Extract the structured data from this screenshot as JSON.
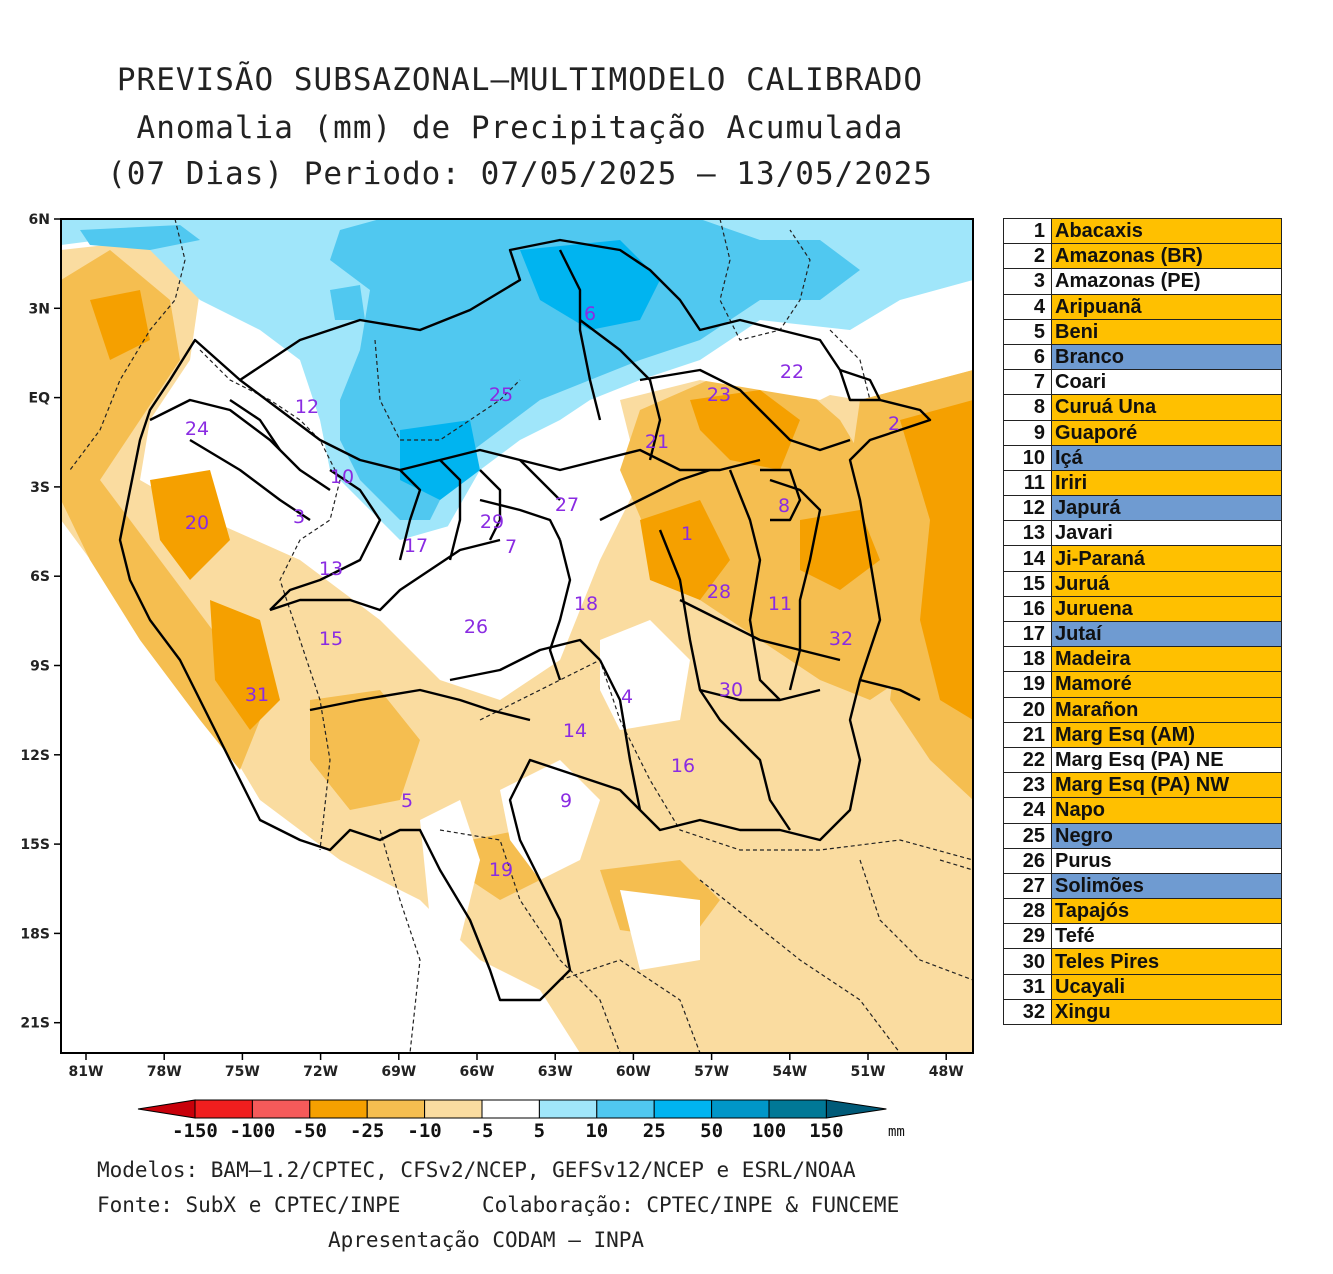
{
  "title": {
    "line1": "PREVISÃO SUBSAZONAL–MULTIMODELO CALIBRADO",
    "line2": "Anomalia (mm) de Precipitação Acumulada",
    "line3": "(07 Dias) Periodo: 07/05/2025 – 13/05/2025"
  },
  "map": {
    "lat_labels": [
      "6N",
      "3N",
      "EQ",
      "3S",
      "6S",
      "9S",
      "12S",
      "15S",
      "18S",
      "21S"
    ],
    "lon_labels": [
      "81W",
      "78W",
      "75W",
      "72W",
      "69W",
      "66W",
      "63W",
      "60W",
      "57W",
      "54W",
      "51W",
      "48W"
    ],
    "basin_labels": [
      "1",
      "2",
      "3",
      "4",
      "5",
      "6",
      "7",
      "8",
      "9",
      "10",
      "11",
      "12",
      "13",
      "14",
      "15",
      "16",
      "17",
      "18",
      "19",
      "20",
      "21",
      "22",
      "23",
      "24",
      "25",
      "26",
      "27",
      "28",
      "29",
      "30",
      "31",
      "32"
    ]
  },
  "colorbar": {
    "ticks": [
      "-150",
      "-100",
      "-50",
      "-25",
      "-10",
      "-5",
      "5",
      "10",
      "25",
      "50",
      "100",
      "150"
    ],
    "unit": "mm",
    "colors": [
      "#c8000a",
      "#f01e1e",
      "#f55a5a",
      "#f5a000",
      "#f5be50",
      "#fadca0",
      "#ffffff",
      "#a0e6fa",
      "#50c8f0",
      "#00b4f0",
      "#0096c8",
      "#007896",
      "#005a78"
    ]
  },
  "legend": [
    {
      "num": "1",
      "name": "Abacaxis",
      "color": "#ffc000"
    },
    {
      "num": "2",
      "name": "Amazonas (BR)",
      "color": "#ffc000"
    },
    {
      "num": "3",
      "name": "Amazonas (PE)",
      "color": "#ffffff"
    },
    {
      "num": "4",
      "name": "Aripuanã",
      "color": "#ffc000"
    },
    {
      "num": "5",
      "name": "Beni",
      "color": "#ffc000"
    },
    {
      "num": "6",
      "name": "Branco",
      "color": "#6f9bd1"
    },
    {
      "num": "7",
      "name": "Coari",
      "color": "#ffffff"
    },
    {
      "num": "8",
      "name": "Curuá Una",
      "color": "#ffc000"
    },
    {
      "num": "9",
      "name": "Guaporé",
      "color": "#ffc000"
    },
    {
      "num": "10",
      "name": "Içá",
      "color": "#6f9bd1"
    },
    {
      "num": "11",
      "name": "Iriri",
      "color": "#ffc000"
    },
    {
      "num": "12",
      "name": "Japurá",
      "color": "#6f9bd1"
    },
    {
      "num": "13",
      "name": "Javari",
      "color": "#ffffff"
    },
    {
      "num": "14",
      "name": "Ji-Paraná",
      "color": "#ffc000"
    },
    {
      "num": "15",
      "name": "Juruá",
      "color": "#ffc000"
    },
    {
      "num": "16",
      "name": "Juruena",
      "color": "#ffc000"
    },
    {
      "num": "17",
      "name": "Jutaí",
      "color": "#6f9bd1"
    },
    {
      "num": "18",
      "name": "Madeira",
      "color": "#ffc000"
    },
    {
      "num": "19",
      "name": "Mamoré",
      "color": "#ffc000"
    },
    {
      "num": "20",
      "name": "Marañon",
      "color": "#ffc000"
    },
    {
      "num": "21",
      "name": "Marg Esq (AM)",
      "color": "#ffc000"
    },
    {
      "num": "22",
      "name": "Marg Esq (PA) NE",
      "color": "#ffffff"
    },
    {
      "num": "23",
      "name": "Marg Esq (PA) NW",
      "color": "#ffc000"
    },
    {
      "num": "24",
      "name": "Napo",
      "color": "#ffc000"
    },
    {
      "num": "25",
      "name": "Negro",
      "color": "#6f9bd1"
    },
    {
      "num": "26",
      "name": "Purus",
      "color": "#ffffff"
    },
    {
      "num": "27",
      "name": "Solimões",
      "color": "#6f9bd1"
    },
    {
      "num": "28",
      "name": "Tapajós",
      "color": "#ffc000"
    },
    {
      "num": "29",
      "name": "Tefé",
      "color": "#ffffff"
    },
    {
      "num": "30",
      "name": "Teles Pires",
      "color": "#ffc000"
    },
    {
      "num": "31",
      "name": "Ucayali",
      "color": "#ffc000"
    },
    {
      "num": "32",
      "name": "Xingu",
      "color": "#ffc000"
    }
  ],
  "footer": {
    "models": "Modelos: BAM–1.2/CPTEC, CFSv2/NCEP, GEFSv12/NCEP e ESRL/NOAA",
    "source": "Fonte: SubX e CPTEC/INPE",
    "collab": "Colaboração: CPTEC/INPE & FUNCEME",
    "presentation": "Apresentação CODAM – INPA"
  }
}
